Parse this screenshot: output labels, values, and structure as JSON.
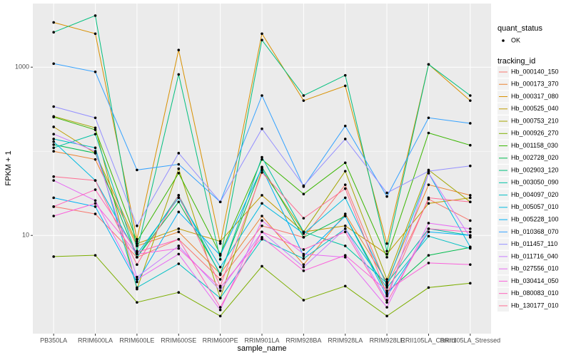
{
  "chart_data": {
    "type": "line",
    "log_y": true,
    "grid": true,
    "x_label": "sample_name",
    "y_label": "FPKM + 1",
    "categories": [
      "PB350LA",
      "RRIM600LA",
      "RRIM600LE",
      "RRIM600SE",
      "RRIM600PE",
      "RRIM901LA",
      "RRIM928BA",
      "RRIM928LA",
      "RRIM928LE",
      "RRII105LA_Control",
      "RRII105LA_Stressed"
    ],
    "ylim": [
      0.68,
      5700
    ],
    "yticks": [
      10,
      1000
    ],
    "shape_legend": {
      "title": "quant_status",
      "labels": [
        "OK"
      ]
    },
    "legend_title": "tracking_id",
    "series": [
      {
        "name": "Hb_000140_150",
        "color": "#F8766D",
        "values": [
          22,
          18,
          5.5,
          9,
          3,
          13,
          9.5,
          40,
          2.5,
          27,
          15
        ]
      },
      {
        "name": "Hb_000173_370",
        "color": "#EA8331",
        "values": [
          100,
          80,
          7.5,
          11,
          3.5,
          17,
          4.5,
          18,
          2.8,
          40,
          30
        ]
      },
      {
        "name": "Hb_000317_080",
        "color": "#D89000",
        "values": [
          3400,
          2500,
          9,
          1600,
          8,
          2500,
          400,
          600,
          8,
          1080,
          400
        ]
      },
      {
        "name": "Hb_000525_040",
        "color": "#C09B00",
        "values": [
          195,
          95,
          8,
          12,
          8.5,
          30,
          11,
          13,
          6,
          24,
          28
        ]
      },
      {
        "name": "Hb_000753_210",
        "color": "#A3A500",
        "values": [
          260,
          190,
          2.3,
          62,
          1.8,
          60,
          11,
          58,
          3,
          60,
          25
        ]
      },
      {
        "name": "Hb_000926_270",
        "color": "#7CAE00",
        "values": [
          5.6,
          5.8,
          1.6,
          2.1,
          1.1,
          4.3,
          1.7,
          2.5,
          1.1,
          2.4,
          2.7
        ]
      },
      {
        "name": "Hb_001158_030",
        "color": "#39B600",
        "values": [
          255,
          180,
          8.5,
          55,
          6,
          80,
          31,
          73,
          5.5,
          165,
          118
        ]
      },
      {
        "name": "Hb_002728_020",
        "color": "#00BB4E",
        "values": [
          120,
          95,
          5.5,
          25,
          3.5,
          65,
          9.5,
          17,
          2.1,
          5.8,
          7.2
        ]
      },
      {
        "name": "Hb_002903_120",
        "color": "#00BF7D",
        "values": [
          2600,
          4100,
          6.5,
          820,
          5.2,
          2100,
          460,
          800,
          6.5,
          1080,
          460
        ]
      },
      {
        "name": "Hb_003050_090",
        "color": "#00C1A3",
        "values": [
          110,
          160,
          5.5,
          30,
          3.4,
          85,
          11,
          7.5,
          2.7,
          12,
          10
        ]
      },
      {
        "name": "Hb_004097_020",
        "color": "#00BFC4",
        "values": [
          140,
          110,
          2.4,
          4.6,
          1.8,
          9,
          5.3,
          12,
          2.4,
          9.8,
          7
        ]
      },
      {
        "name": "Hb_005057_010",
        "color": "#00BAE0",
        "values": [
          130,
          45,
          6,
          28,
          4.2,
          24,
          10.5,
          28,
          2.6,
          55,
          7.3
        ]
      },
      {
        "name": "Hb_005228_100",
        "color": "#00B0F6",
        "values": [
          28,
          22,
          2.8,
          19,
          5.8,
          63,
          5.7,
          17,
          1.9,
          11,
          10
        ]
      },
      {
        "name": "Hb_010368_070",
        "color": "#35A2FF",
        "values": [
          1100,
          880,
          60,
          70,
          25,
          460,
          38,
          200,
          29,
          250,
          215
        ]
      },
      {
        "name": "Hb_011457_110",
        "color": "#9590FF",
        "values": [
          340,
          250,
          13,
          95,
          25,
          185,
          39,
          140,
          32,
          58,
          67
        ]
      },
      {
        "name": "Hb_011716_040",
        "color": "#C77CFF",
        "values": [
          160,
          100,
          3.2,
          7.5,
          2.2,
          11,
          4.2,
          12,
          1.7,
          55,
          9.5
        ]
      },
      {
        "name": "Hb_027556_010",
        "color": "#E76BF3",
        "values": [
          45,
          26,
          3,
          6,
          1.3,
          15,
          6,
          5.5,
          1.4,
          14,
          12
        ]
      },
      {
        "name": "Hb_030414_050",
        "color": "#FA62DB",
        "values": [
          17,
          24,
          6,
          7,
          2.4,
          9.5,
          3.8,
          5.8,
          2.2,
          4.7,
          4.5
        ]
      },
      {
        "name": "Hb_080083_010",
        "color": "#FF62BC",
        "values": [
          22,
          35,
          6.3,
          9,
          1.4,
          11,
          6.8,
          11,
          1.6,
          12,
          11
        ]
      },
      {
        "name": "Hb_130177_010",
        "color": "#FF6C91",
        "values": [
          50,
          45,
          4.5,
          30,
          2.5,
          56,
          16,
          36,
          2,
          28,
          25
        ]
      }
    ]
  }
}
